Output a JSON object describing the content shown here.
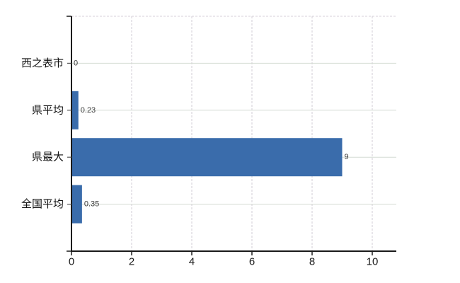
{
  "chart_data": {
    "type": "bar",
    "orientation": "horizontal",
    "title": "",
    "xlabel": "",
    "ylabel": "",
    "categories": [
      "西之表市",
      "県平均",
      "県最大",
      "全国平均"
    ],
    "values": [
      0,
      0.23,
      9,
      0.35
    ],
    "value_labels": [
      "0",
      "0.23",
      "9",
      "0.35"
    ],
    "xticks": [
      0,
      2,
      4,
      6,
      8,
      10
    ],
    "xtick_labels": [
      "0",
      "2",
      "4",
      "6",
      "8",
      "10"
    ],
    "xlim": [
      0,
      10.8
    ],
    "legend": "none",
    "grid": {
      "horizontal": "solid",
      "vertical": "dashed",
      "top_border": "dashed"
    },
    "colors": {
      "background": "#ffffff",
      "bar": "#3a6cab",
      "axis": "#1a1a1a",
      "grid_horizontal": "#d4dbd3",
      "grid_vertical": "#d2cdd5",
      "top_border": "#d7d2da",
      "category_text": "#111111",
      "tick_text": "#1a1a1a",
      "value_text": "#3a3a3a",
      "category_tick": "#555555"
    }
  }
}
